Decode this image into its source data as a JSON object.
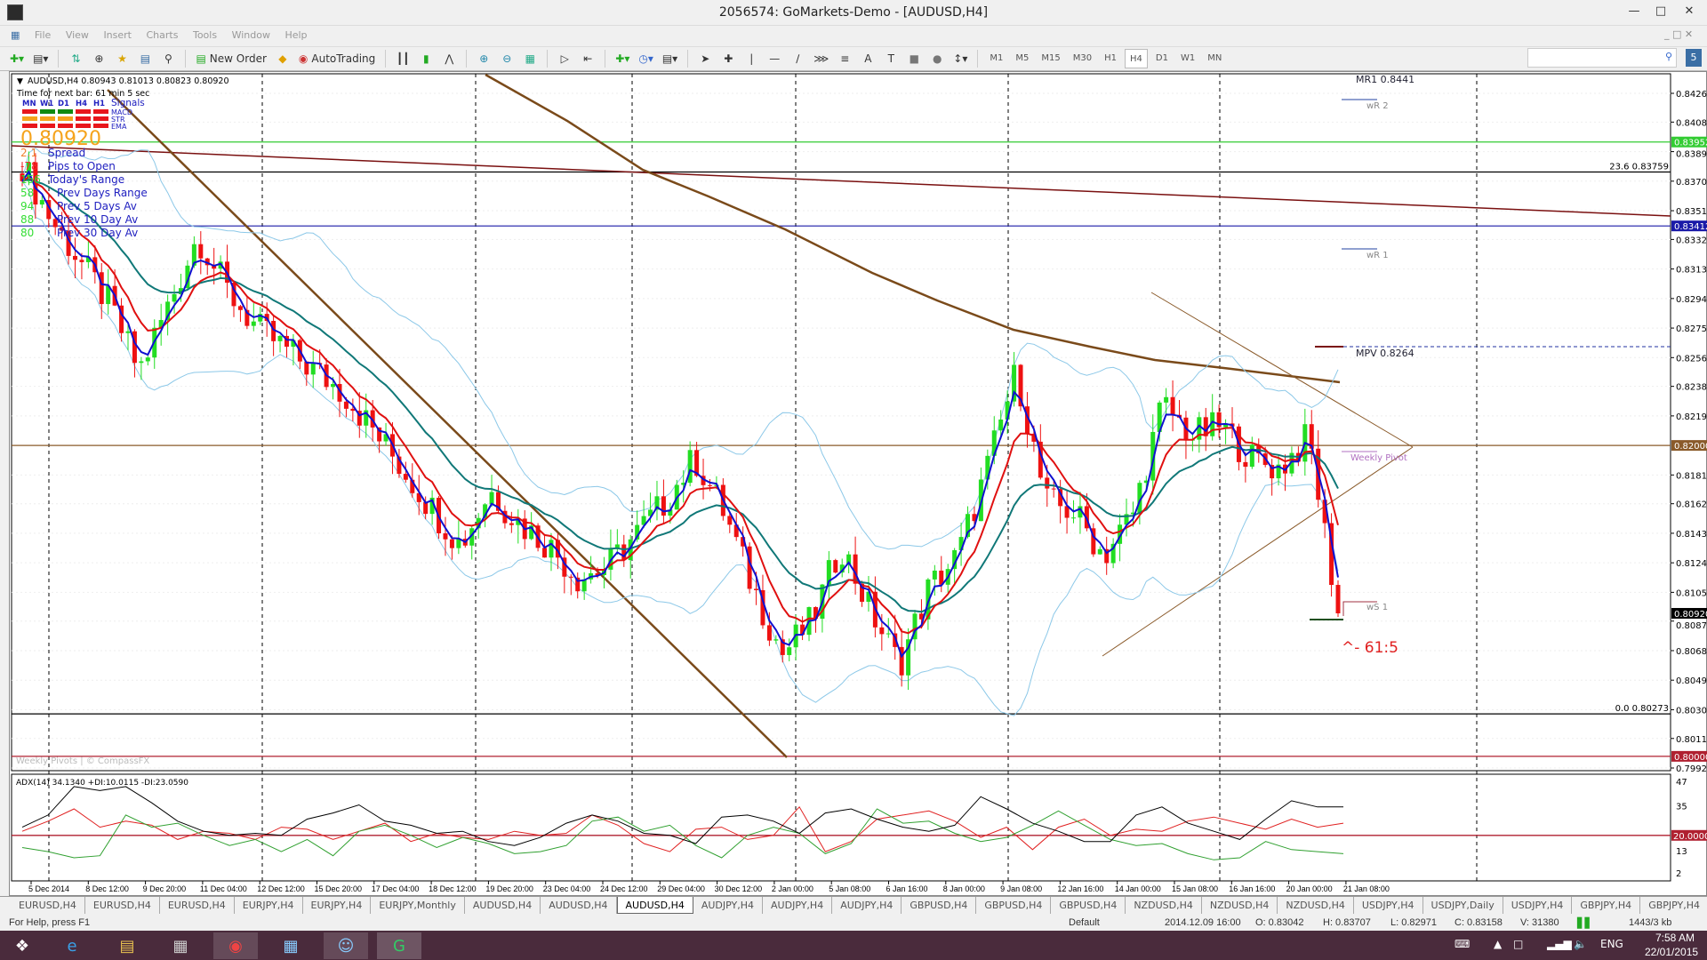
{
  "window": {
    "title": "2056574: GoMarkets-Demo - [AUDUSD,H4]"
  },
  "menu": [
    "File",
    "View",
    "Insert",
    "Charts",
    "Tools",
    "Window",
    "Help"
  ],
  "toolbar": {
    "new_order": "New Order",
    "autotrading": "AutoTrading",
    "timeframes": [
      "M1",
      "M5",
      "M15",
      "M30",
      "H1",
      "H4",
      "D1",
      "W1",
      "MN"
    ],
    "active_timeframe": "H4"
  },
  "chart": {
    "header": "AUDUSD,H4  0.80943 0.81013 0.80823 0.80920",
    "timer": "Time for next bar: 61 min 5 sec",
    "signals": {
      "periods": [
        "MN",
        "W1",
        "D1",
        "H4",
        "H1"
      ],
      "title": "Signals",
      "rows": [
        "MACD",
        "STR",
        "EMA"
      ],
      "colors": [
        [
          "#e8161c",
          "#108a10",
          "#108a10",
          "#e8161c",
          "#e8161c"
        ],
        [
          "#f5a31c",
          "#f5a31c",
          "#f5a31c",
          "#e8161c",
          "#e8161c"
        ],
        [
          "#e8161c",
          "#e8161c",
          "#e8161c",
          "#e8161c",
          "#e8161c"
        ]
      ]
    },
    "bid": "0.80920",
    "info": [
      {
        "value": "2.1",
        "label": "Spread",
        "color": "#f08030"
      },
      {
        "value": "-78",
        "label": "Pips to Open",
        "color": "#f03030"
      },
      {
        "value": "156",
        "label": "Today's Range",
        "color": "#33dd33"
      },
      {
        "value": "58",
        "label": "Prev Days Range",
        "color": "#33dd33"
      },
      {
        "value": "94",
        "label": "Prev 5 Days Av",
        "color": "#33dd33"
      },
      {
        "value": "88",
        "label": "Prev 10 Day Av",
        "color": "#33dd33"
      },
      {
        "value": "80",
        "label": "Prev 30 Day Av",
        "color": "#33dd33"
      }
    ],
    "watermark": "Weekly Pivots | © CompassFX",
    "price_ticks": [
      "0.84265",
      "0.84080",
      "0.83890",
      "0.83700",
      "0.83510",
      "0.83325",
      "0.83135",
      "0.82945",
      "0.82755",
      "0.82565",
      "0.82380",
      "0.82190",
      "0.81810",
      "0.81625",
      "0.81435",
      "0.81245",
      "0.81055",
      "0.80870",
      "0.80680",
      "0.80490",
      "0.80300",
      "0.80115",
      "0.79925"
    ],
    "levels": [
      {
        "price": "0.83952",
        "color": "#33cc33",
        "tag": true
      },
      {
        "price": "0.83759",
        "color": "#000000",
        "text": "23.6  0.83759"
      },
      {
        "price": "0.83412",
        "color": "#1a1aa8",
        "tag": true
      },
      {
        "price": "0.82000",
        "color": "#8a5a2a",
        "tag": true
      },
      {
        "price": "0.80920",
        "color": "#000000",
        "tag": true,
        "noline": true
      },
      {
        "price": "0.80273",
        "color": "#000000",
        "text": "0.0  0.80273"
      },
      {
        "price": "0.80000",
        "color": "#b02030",
        "tag": true
      }
    ],
    "pivots": {
      "mr1": "MR1  0.8441",
      "wr2": "wR 2",
      "wr1": "wR 1",
      "mpv": "MPV  0.8264",
      "weekly_pivot": "Weekly Pivot",
      "ws1": "wS 1",
      "fib_note": "^- 61:5"
    },
    "approx_closes": [
      0.8381,
      0.8345,
      0.8318,
      0.829,
      0.8248,
      0.829,
      0.8335,
      0.83,
      0.8276,
      0.8262,
      0.8248,
      0.8234,
      0.821,
      0.8185,
      0.816,
      0.8136,
      0.8171,
      0.815,
      0.8136,
      0.8115,
      0.8122,
      0.8143,
      0.8164,
      0.8192,
      0.8157,
      0.8108,
      0.8066,
      0.8087,
      0.8136,
      0.8094,
      0.8059,
      0.8108,
      0.8129,
      0.8185,
      0.8248,
      0.8164,
      0.8157,
      0.8129,
      0.8157,
      0.8227,
      0.8206,
      0.8213,
      0.8192,
      0.8185,
      0.8206,
      0.8092
    ],
    "time_labels": [
      "5 Dec 2014",
      "8 Dec 12:00",
      "9 Dec 20:00",
      "11 Dec 04:00",
      "12 Dec 12:00",
      "15 Dec 20:00",
      "17 Dec 04:00",
      "18 Dec 12:00",
      "19 Dec 20:00",
      "23 Dec 04:00",
      "24 Dec 12:00",
      "29 Dec 04:00",
      "30 Dec 12:00",
      "2 Jan 00:00",
      "5 Jan 08:00",
      "6 Jan 16:00",
      "8 Jan 00:00",
      "9 Jan 08:00",
      "12 Jan 16:00",
      "14 Jan 00:00",
      "15 Jan 08:00",
      "16 Jan 16:00",
      "20 Jan 00:00",
      "21 Jan 08:00"
    ],
    "colors": {
      "bull": "#22dd22",
      "bear": "#ee1111",
      "ema_fast": "#1010d0",
      "ema_mid": "#e01010",
      "ema_slow": "#107878",
      "bands": "#8cc8e8",
      "trend": "#7a4a1a"
    }
  },
  "adx": {
    "label": "ADX(14) 34.1340 +DI:10.0115 -DI:23.0590",
    "ticks": [
      "47",
      "35",
      "13",
      "2"
    ],
    "level": "20.0000",
    "adx": [
      24,
      30,
      44,
      42,
      44,
      36,
      27,
      22,
      20,
      21,
      20,
      28,
      31,
      35,
      27,
      25,
      21,
      22,
      17,
      15,
      19,
      26,
      30,
      27,
      21,
      20,
      16,
      29,
      30,
      27,
      21,
      31,
      33,
      28,
      24,
      22,
      25,
      39,
      33,
      26,
      22,
      17,
      17,
      30,
      34,
      26,
      22,
      18,
      28,
      37,
      34,
      34
    ],
    "plus_di": [
      14,
      12,
      9,
      10,
      30,
      24,
      26,
      20,
      15,
      18,
      12,
      18,
      10,
      22,
      25,
      20,
      14,
      19,
      16,
      11,
      12,
      15,
      27,
      29,
      22,
      25,
      15,
      9,
      20,
      24,
      21,
      11,
      16,
      33,
      26,
      27,
      21,
      17,
      19,
      25,
      32,
      25,
      18,
      15,
      16,
      11,
      8,
      9,
      17,
      13,
      12,
      11
    ],
    "minus_di": [
      22,
      27,
      33,
      24,
      27,
      25,
      18,
      22,
      21,
      18,
      24,
      23,
      18,
      22,
      26,
      17,
      21,
      19,
      18,
      22,
      20,
      21,
      30,
      25,
      16,
      12,
      23,
      24,
      18,
      20,
      34,
      12,
      17,
      28,
      30,
      32,
      27,
      19,
      24,
      13,
      24,
      28,
      20,
      23,
      22,
      27,
      29,
      26,
      23,
      28,
      24,
      26
    ]
  },
  "tabs": [
    "EURUSD,H4",
    "EURUSD,H4",
    "EURUSD,H4",
    "EURJPY,H4",
    "EURJPY,H4",
    "EURJPY,Monthly",
    "AUDUSD,H4",
    "AUDUSD,H4",
    "AUDUSD,H4",
    "AUDJPY,H4",
    "AUDJPY,H4",
    "AUDJPY,H4",
    "GBPUSD,H4",
    "GBPUSD,H4",
    "GBPUSD,H4",
    "NZDUSD,H4",
    "NZDUSD,H4",
    "NZDUSD,H4",
    "USDJPY,H4",
    "USDJPY,Daily",
    "USDJPY,H4",
    "GBPJPY,H4",
    "GBPJPY,H4",
    "GBPJPY"
  ],
  "active_tab": 8,
  "status": {
    "help": "For Help, press F1",
    "profile": "Default",
    "time": "2014.12.09 16:00",
    "open": "O: 0.83042",
    "high": "H: 0.83707",
    "low": "L: 0.82971",
    "close": "C: 0.83158",
    "volume": "V: 31380",
    "traffic": "1443/3 kb"
  },
  "taskbar": {
    "lang": "ENG",
    "clock": "7:58 AM",
    "date": "22/01/2015"
  }
}
